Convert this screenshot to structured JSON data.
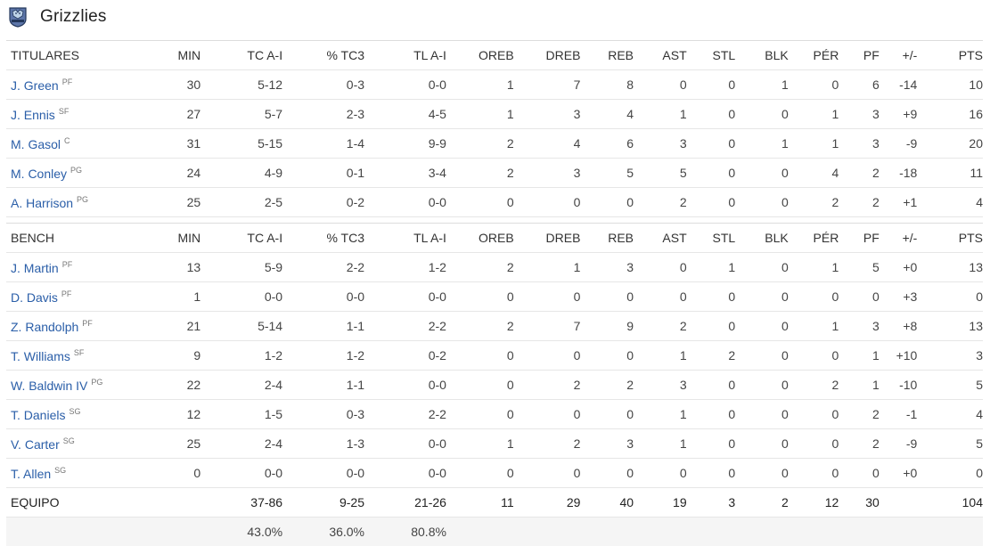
{
  "team": {
    "name": "Grizzlies",
    "logo_icon": "grizzlies-logo-icon"
  },
  "columns": [
    "MIN",
    "TC A-I",
    "% TC3",
    "TL A-I",
    "OREB",
    "DREB",
    "REB",
    "AST",
    "STL",
    "BLK",
    "PÉR",
    "PF",
    "+/-",
    "PTS"
  ],
  "starters_label": "TITULARES",
  "bench_label": "BENCH",
  "starters": [
    {
      "name": "J. Green",
      "pos": "PF",
      "stats": [
        "30",
        "5-12",
        "0-3",
        "0-0",
        "1",
        "7",
        "8",
        "0",
        "0",
        "1",
        "0",
        "6",
        "-14",
        "10"
      ]
    },
    {
      "name": "J. Ennis",
      "pos": "SF",
      "stats": [
        "27",
        "5-7",
        "2-3",
        "4-5",
        "1",
        "3",
        "4",
        "1",
        "0",
        "0",
        "1",
        "3",
        "+9",
        "16"
      ]
    },
    {
      "name": "M. Gasol",
      "pos": "C",
      "stats": [
        "31",
        "5-15",
        "1-4",
        "9-9",
        "2",
        "4",
        "6",
        "3",
        "0",
        "1",
        "1",
        "3",
        "-9",
        "20"
      ]
    },
    {
      "name": "M. Conley",
      "pos": "PG",
      "stats": [
        "24",
        "4-9",
        "0-1",
        "3-4",
        "2",
        "3",
        "5",
        "5",
        "0",
        "0",
        "4",
        "2",
        "-18",
        "11"
      ]
    },
    {
      "name": "A. Harrison",
      "pos": "PG",
      "stats": [
        "25",
        "2-5",
        "0-2",
        "0-0",
        "0",
        "0",
        "0",
        "2",
        "0",
        "0",
        "2",
        "2",
        "+1",
        "4"
      ]
    }
  ],
  "bench": [
    {
      "name": "J. Martin",
      "pos": "PF",
      "stats": [
        "13",
        "5-9",
        "2-2",
        "1-2",
        "2",
        "1",
        "3",
        "0",
        "1",
        "0",
        "1",
        "5",
        "+0",
        "13"
      ]
    },
    {
      "name": "D. Davis",
      "pos": "PF",
      "stats": [
        "1",
        "0-0",
        "0-0",
        "0-0",
        "0",
        "0",
        "0",
        "0",
        "0",
        "0",
        "0",
        "0",
        "+3",
        "0"
      ]
    },
    {
      "name": "Z. Randolph",
      "pos": "PF",
      "stats": [
        "21",
        "5-14",
        "1-1",
        "2-2",
        "2",
        "7",
        "9",
        "2",
        "0",
        "0",
        "1",
        "3",
        "+8",
        "13"
      ]
    },
    {
      "name": "T. Williams",
      "pos": "SF",
      "stats": [
        "9",
        "1-2",
        "1-2",
        "0-2",
        "0",
        "0",
        "0",
        "1",
        "2",
        "0",
        "0",
        "1",
        "+10",
        "3"
      ]
    },
    {
      "name": "W. Baldwin IV",
      "pos": "PG",
      "stats": [
        "22",
        "2-4",
        "1-1",
        "0-0",
        "0",
        "2",
        "2",
        "3",
        "0",
        "0",
        "2",
        "1",
        "-10",
        "5"
      ]
    },
    {
      "name": "T. Daniels",
      "pos": "SG",
      "stats": [
        "12",
        "1-5",
        "0-3",
        "2-2",
        "0",
        "0",
        "0",
        "1",
        "0",
        "0",
        "0",
        "2",
        "-1",
        "4"
      ]
    },
    {
      "name": "V. Carter",
      "pos": "SG",
      "stats": [
        "25",
        "2-4",
        "1-3",
        "0-0",
        "1",
        "2",
        "3",
        "1",
        "0",
        "0",
        "0",
        "2",
        "-9",
        "5"
      ]
    },
    {
      "name": "T. Allen",
      "pos": "SG",
      "stats": [
        "0",
        "0-0",
        "0-0",
        "0-0",
        "0",
        "0",
        "0",
        "0",
        "0",
        "0",
        "0",
        "0",
        "+0",
        "0"
      ]
    }
  ],
  "totals": {
    "label": "EQUIPO",
    "stats": [
      "",
      "37-86",
      "9-25",
      "21-26",
      "11",
      "29",
      "40",
      "19",
      "3",
      "2",
      "12",
      "30",
      "",
      "104"
    ]
  },
  "percentages": [
    "",
    "43.0%",
    "36.0%",
    "80.8%",
    "",
    "",
    "",
    "",
    "",
    "",
    "",
    "",
    "",
    ""
  ],
  "colors": {
    "link": "#2a5ea8",
    "border": "#e6e6e6",
    "pct_row_bg": "#f5f5f5"
  }
}
